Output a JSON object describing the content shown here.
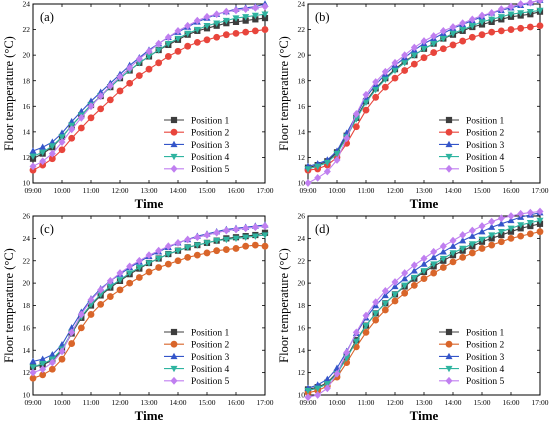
{
  "chart_data": [
    {
      "type": "line",
      "title": "(a)",
      "xlabel": "Time",
      "ylabel": "Floor temperature (°C)",
      "ylim": [
        10,
        24
      ],
      "yticks": [
        10,
        12,
        14,
        16,
        18,
        20,
        22,
        24
      ],
      "x": [
        "09:00",
        "09:20",
        "09:40",
        "10:00",
        "10:20",
        "10:40",
        "11:00",
        "11:20",
        "11:40",
        "12:00",
        "12:20",
        "12:40",
        "13:00",
        "13:20",
        "13:40",
        "14:00",
        "14:20",
        "14:40",
        "15:00",
        "15:20",
        "15:40",
        "16:00",
        "16:20",
        "16:40",
        "17:00"
      ],
      "xtick_labels": [
        "09:00",
        "10:00",
        "11:00",
        "12:00",
        "13:00",
        "14:00",
        "15:00",
        "16:00",
        "17:00"
      ],
      "legend_position": "bottom-right",
      "series": [
        {
          "name": "Position 1",
          "color": "#3d3d3d",
          "marker": "square",
          "values": [
            11.9,
            12.3,
            12.8,
            13.6,
            14.5,
            15.3,
            16.1,
            16.8,
            17.5,
            18.2,
            18.8,
            19.4,
            19.9,
            20.4,
            20.8,
            21.2,
            21.6,
            21.9,
            22.1,
            22.3,
            22.5,
            22.6,
            22.7,
            22.8,
            22.9
          ]
        },
        {
          "name": "Position 2",
          "color": "#e8453c",
          "marker": "circle",
          "values": [
            11.0,
            11.4,
            11.9,
            12.6,
            13.5,
            14.3,
            15.1,
            15.8,
            16.5,
            17.2,
            17.8,
            18.4,
            18.9,
            19.4,
            19.9,
            20.3,
            20.7,
            21.0,
            21.2,
            21.4,
            21.6,
            21.7,
            21.8,
            21.9,
            22.0
          ]
        },
        {
          "name": "Position 3",
          "color": "#3455c9",
          "marker": "triangle-up",
          "values": [
            12.5,
            12.8,
            13.2,
            13.9,
            14.8,
            15.6,
            16.4,
            17.1,
            17.8,
            18.5,
            19.2,
            19.8,
            20.4,
            20.9,
            21.4,
            21.8,
            22.2,
            22.6,
            22.9,
            23.2,
            23.4,
            23.6,
            23.7,
            23.8,
            24.0
          ]
        },
        {
          "name": "Position 4",
          "color": "#2fb4a0",
          "marker": "triangle-down",
          "values": [
            12.1,
            12.4,
            12.9,
            13.6,
            14.5,
            15.3,
            16.1,
            16.8,
            17.5,
            18.2,
            18.8,
            19.4,
            19.9,
            20.4,
            20.9,
            21.3,
            21.7,
            22.0,
            22.3,
            22.5,
            22.7,
            22.9,
            23.0,
            23.1,
            23.2
          ]
        },
        {
          "name": "Position 5",
          "color": "#c07ff0",
          "marker": "diamond",
          "values": [
            11.3,
            11.7,
            12.3,
            13.2,
            14.2,
            15.1,
            16.0,
            16.8,
            17.6,
            18.3,
            19.0,
            19.7,
            20.3,
            20.9,
            21.4,
            21.9,
            22.3,
            22.7,
            23.0,
            23.2,
            23.4,
            23.5,
            23.6,
            23.7,
            23.8
          ]
        }
      ]
    },
    {
      "type": "line",
      "title": "(b)",
      "xlabel": "Time",
      "ylabel": "Floor temperature (°C)",
      "ylim": [
        10,
        24
      ],
      "yticks": [
        10,
        12,
        14,
        16,
        18,
        20,
        22,
        24
      ],
      "x": [
        "09:00",
        "09:20",
        "09:40",
        "10:00",
        "10:20",
        "10:40",
        "11:00",
        "11:20",
        "11:40",
        "12:00",
        "12:20",
        "12:40",
        "13:00",
        "13:20",
        "13:40",
        "14:00",
        "14:20",
        "14:40",
        "15:00",
        "15:20",
        "15:40",
        "16:00",
        "16:20",
        "16:40",
        "17:00"
      ],
      "xtick_labels": [
        "09:00",
        "10:00",
        "11:00",
        "12:00",
        "13:00",
        "14:00",
        "15:00",
        "16:00",
        "17:00"
      ],
      "legend_position": "bottom-right",
      "series": [
        {
          "name": "Position 1",
          "color": "#3d3d3d",
          "marker": "square",
          "values": [
            11.2,
            11.4,
            11.7,
            12.4,
            13.7,
            15.1,
            16.4,
            17.4,
            18.2,
            18.9,
            19.5,
            20.0,
            20.5,
            20.9,
            21.3,
            21.6,
            21.9,
            22.2,
            22.4,
            22.6,
            22.8,
            23.0,
            23.1,
            23.2,
            23.4
          ]
        },
        {
          "name": "Position 2",
          "color": "#e8453c",
          "marker": "circle",
          "values": [
            11.0,
            11.1,
            11.4,
            12.0,
            13.1,
            14.4,
            15.7,
            16.7,
            17.5,
            18.2,
            18.8,
            19.3,
            19.8,
            20.2,
            20.5,
            20.8,
            21.1,
            21.4,
            21.6,
            21.8,
            21.9,
            22.0,
            22.1,
            22.2,
            22.3
          ]
        },
        {
          "name": "Position 3",
          "color": "#3455c9",
          "marker": "triangle-up",
          "values": [
            11.3,
            11.5,
            11.8,
            12.5,
            13.9,
            15.3,
            16.7,
            17.7,
            18.5,
            19.2,
            19.8,
            20.4,
            20.9,
            21.3,
            21.7,
            22.1,
            22.4,
            22.7,
            23.0,
            23.3,
            23.5,
            23.7,
            23.9,
            24.1,
            24.3
          ]
        },
        {
          "name": "Position 4",
          "color": "#2fb4a0",
          "marker": "triangle-down",
          "values": [
            11.1,
            11.3,
            11.6,
            12.3,
            13.6,
            15.0,
            16.3,
            17.3,
            18.1,
            18.8,
            19.4,
            20.0,
            20.5,
            20.9,
            21.3,
            21.7,
            22.0,
            22.3,
            22.6,
            22.8,
            23.0,
            23.2,
            23.3,
            23.4,
            23.5
          ]
        },
        {
          "name": "Position 5",
          "color": "#c07ff0",
          "marker": "diamond",
          "values": [
            10.0,
            10.4,
            10.9,
            11.8,
            13.5,
            15.4,
            16.9,
            17.9,
            18.7,
            19.4,
            20.0,
            20.6,
            21.1,
            21.5,
            21.9,
            22.2,
            22.5,
            22.8,
            23.1,
            23.3,
            23.6,
            23.8,
            24.0,
            24.1,
            24.3
          ]
        }
      ]
    },
    {
      "type": "line",
      "title": "(c)",
      "xlabel": "Time",
      "ylabel": "Floor temperature (°C)",
      "ylim": [
        10,
        26
      ],
      "yticks": [
        10,
        12,
        14,
        16,
        18,
        20,
        22,
        24,
        26
      ],
      "x": [
        "09:00",
        "09:20",
        "09:40",
        "10:00",
        "10:20",
        "10:40",
        "11:00",
        "11:20",
        "11:40",
        "12:00",
        "12:20",
        "12:40",
        "13:00",
        "13:20",
        "13:40",
        "14:00",
        "14:20",
        "14:40",
        "15:00",
        "15:20",
        "15:40",
        "16:00",
        "16:20",
        "16:40",
        "17:00"
      ],
      "xtick_labels": [
        "09:00",
        "10:00",
        "11:00",
        "12:00",
        "13:00",
        "14:00",
        "15:00",
        "16:00",
        "17:00"
      ],
      "legend_position": "bottom-right",
      "series": [
        {
          "name": "Position 1",
          "color": "#3d3d3d",
          "marker": "square",
          "values": [
            12.5,
            12.7,
            13.1,
            14.0,
            15.5,
            16.9,
            18.0,
            18.9,
            19.6,
            20.2,
            20.8,
            21.3,
            21.8,
            22.2,
            22.6,
            22.9,
            23.2,
            23.4,
            23.6,
            23.8,
            24.0,
            24.1,
            24.2,
            24.3,
            24.5
          ]
        },
        {
          "name": "Position 2",
          "color": "#d9652a",
          "marker": "circle",
          "values": [
            11.5,
            11.8,
            12.3,
            13.2,
            14.6,
            16.0,
            17.2,
            18.1,
            18.8,
            19.4,
            20.0,
            20.5,
            21.0,
            21.4,
            21.7,
            22.0,
            22.3,
            22.5,
            22.7,
            22.9,
            23.0,
            23.1,
            23.3,
            23.4,
            23.3
          ]
        },
        {
          "name": "Position 3",
          "color": "#3455c9",
          "marker": "triangle-up",
          "values": [
            13.0,
            13.2,
            13.6,
            14.5,
            16.0,
            17.4,
            18.6,
            19.5,
            20.2,
            20.8,
            21.4,
            21.9,
            22.4,
            22.8,
            23.2,
            23.6,
            23.9,
            24.2,
            24.4,
            24.6,
            24.8,
            24.9,
            25.0,
            25.1,
            25.2
          ]
        },
        {
          "name": "Position 4",
          "color": "#2fb4a0",
          "marker": "triangle-down",
          "values": [
            12.5,
            12.8,
            13.2,
            14.1,
            15.6,
            17.0,
            18.1,
            19.0,
            19.7,
            20.3,
            20.9,
            21.4,
            21.8,
            22.2,
            22.6,
            22.9,
            23.2,
            23.4,
            23.6,
            23.8,
            23.9,
            24.0,
            24.1,
            24.2,
            24.3
          ]
        },
        {
          "name": "Position 5",
          "color": "#c07ff0",
          "marker": "diamond",
          "values": [
            12.0,
            12.3,
            12.9,
            13.9,
            15.6,
            17.2,
            18.5,
            19.4,
            20.2,
            20.9,
            21.5,
            22.0,
            22.5,
            22.9,
            23.3,
            23.6,
            23.9,
            24.1,
            24.3,
            24.5,
            24.7,
            24.8,
            24.9,
            25.0,
            25.1
          ]
        }
      ]
    },
    {
      "type": "line",
      "title": "(d)",
      "xlabel": "Time",
      "ylabel": "Floor temperature (°C)",
      "ylim": [
        10,
        26
      ],
      "yticks": [
        10,
        12,
        14,
        16,
        18,
        20,
        22,
        24,
        26
      ],
      "x": [
        "09:00",
        "09:20",
        "09:40",
        "10:00",
        "10:20",
        "10:40",
        "11:00",
        "11:20",
        "11:40",
        "12:00",
        "12:20",
        "12:40",
        "13:00",
        "13:20",
        "13:40",
        "14:00",
        "14:20",
        "14:40",
        "15:00",
        "15:20",
        "15:40",
        "16:00",
        "16:20",
        "16:40",
        "17:00"
      ],
      "xtick_labels": [
        "09:00",
        "10:00",
        "11:00",
        "12:00",
        "13:00",
        "14:00",
        "15:00",
        "16:00",
        "17:00"
      ],
      "legend_position": "bottom-right",
      "series": [
        {
          "name": "Position 1",
          "color": "#3d3d3d",
          "marker": "square",
          "values": [
            10.5,
            10.7,
            11.1,
            12.0,
            13.4,
            14.9,
            16.2,
            17.3,
            18.2,
            19.0,
            19.7,
            20.4,
            21.0,
            21.5,
            22.0,
            22.5,
            22.9,
            23.3,
            23.7,
            24.0,
            24.3,
            24.6,
            24.9,
            25.1,
            25.3
          ]
        },
        {
          "name": "Position 2",
          "color": "#d9652a",
          "marker": "circle",
          "values": [
            10.2,
            10.4,
            10.8,
            11.6,
            12.9,
            14.3,
            15.6,
            16.7,
            17.6,
            18.4,
            19.1,
            19.8,
            20.4,
            20.9,
            21.4,
            21.9,
            22.3,
            22.7,
            23.1,
            23.4,
            23.7,
            24.0,
            24.2,
            24.4,
            24.6
          ]
        },
        {
          "name": "Position 3",
          "color": "#3455c9",
          "marker": "triangle-up",
          "values": [
            10.6,
            10.9,
            11.4,
            12.4,
            13.9,
            15.5,
            16.9,
            18.0,
            18.9,
            19.7,
            20.4,
            21.1,
            21.7,
            22.3,
            22.8,
            23.3,
            23.8,
            24.2,
            24.6,
            25.0,
            25.3,
            25.6,
            25.9,
            26.1,
            26.3
          ]
        },
        {
          "name": "Position 4",
          "color": "#2fb4a0",
          "marker": "triangle-down",
          "values": [
            10.4,
            10.6,
            11.0,
            11.9,
            13.3,
            14.8,
            16.2,
            17.3,
            18.2,
            19.0,
            19.8,
            20.5,
            21.1,
            21.7,
            22.2,
            22.7,
            23.1,
            23.5,
            23.9,
            24.3,
            24.6,
            24.9,
            25.2,
            25.4,
            25.6
          ]
        },
        {
          "name": "Position 5",
          "color": "#c07ff0",
          "marker": "diamond",
          "values": [
            9.8,
            10.0,
            10.6,
            11.9,
            13.8,
            15.6,
            17.1,
            18.3,
            19.3,
            20.1,
            20.9,
            21.6,
            22.2,
            22.8,
            23.3,
            23.8,
            24.3,
            24.7,
            25.1,
            25.5,
            25.8,
            26.0,
            26.2,
            26.3,
            26.4
          ]
        }
      ]
    }
  ]
}
